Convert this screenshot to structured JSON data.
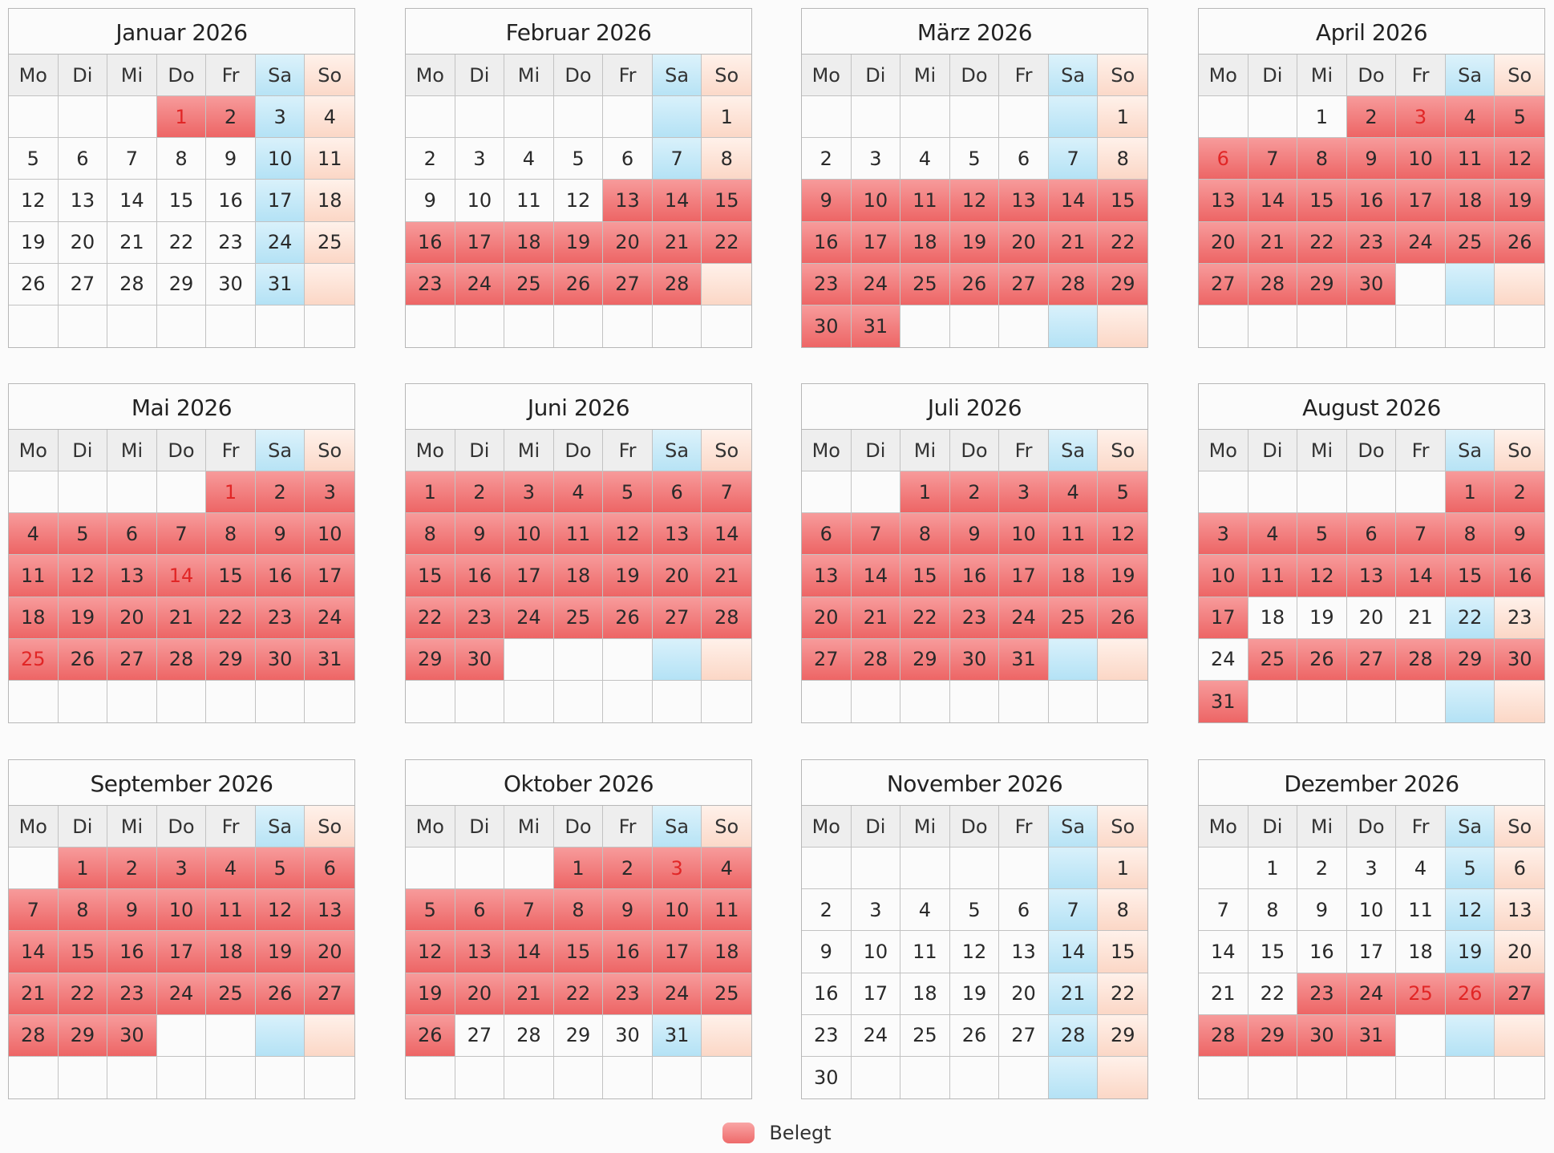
{
  "weekdays": [
    "Mo",
    "Di",
    "Mi",
    "Do",
    "Fr",
    "Sa",
    "So"
  ],
  "legend": {
    "label": "Belegt"
  },
  "months": [
    {
      "title": "Januar 2026",
      "first_weekday": 3,
      "days": 31,
      "booked": [
        1,
        2
      ],
      "holidays": [
        1
      ]
    },
    {
      "title": "Februar 2026",
      "first_weekday": 6,
      "days": 28,
      "booked": [
        13,
        14,
        15,
        16,
        17,
        18,
        19,
        20,
        21,
        22,
        23,
        24,
        25,
        26,
        27,
        28
      ],
      "holidays": []
    },
    {
      "title": "März 2026",
      "first_weekday": 6,
      "days": 31,
      "booked": [
        9,
        10,
        11,
        12,
        13,
        14,
        15,
        16,
        17,
        18,
        19,
        20,
        21,
        22,
        23,
        24,
        25,
        26,
        27,
        28,
        29,
        30,
        31
      ],
      "holidays": []
    },
    {
      "title": "April 2026",
      "first_weekday": 2,
      "days": 30,
      "booked": [
        2,
        3,
        4,
        5,
        6,
        7,
        8,
        9,
        10,
        11,
        12,
        13,
        14,
        15,
        16,
        17,
        18,
        19,
        20,
        21,
        22,
        23,
        24,
        25,
        26,
        27,
        28,
        29,
        30
      ],
      "holidays": [
        3,
        6
      ]
    },
    {
      "title": "Mai 2026",
      "first_weekday": 4,
      "days": 31,
      "booked": [
        1,
        2,
        3,
        4,
        5,
        6,
        7,
        8,
        9,
        10,
        11,
        12,
        13,
        14,
        15,
        16,
        17,
        18,
        19,
        20,
        21,
        22,
        23,
        24,
        25,
        26,
        27,
        28,
        29,
        30,
        31
      ],
      "holidays": [
        1,
        14,
        25
      ]
    },
    {
      "title": "Juni 2026",
      "first_weekday": 0,
      "days": 30,
      "booked": [
        1,
        2,
        3,
        4,
        5,
        6,
        7,
        8,
        9,
        10,
        11,
        12,
        13,
        14,
        15,
        16,
        17,
        18,
        19,
        20,
        21,
        22,
        23,
        24,
        25,
        26,
        27,
        28,
        29,
        30
      ],
      "holidays": []
    },
    {
      "title": "Juli 2026",
      "first_weekday": 2,
      "days": 31,
      "booked": [
        1,
        2,
        3,
        4,
        5,
        6,
        7,
        8,
        9,
        10,
        11,
        12,
        13,
        14,
        15,
        16,
        17,
        18,
        19,
        20,
        21,
        22,
        23,
        24,
        25,
        26,
        27,
        28,
        29,
        30,
        31
      ],
      "holidays": []
    },
    {
      "title": "August 2026",
      "first_weekday": 5,
      "days": 31,
      "booked": [
        1,
        2,
        3,
        4,
        5,
        6,
        7,
        8,
        9,
        10,
        11,
        12,
        13,
        14,
        15,
        16,
        17,
        25,
        26,
        27,
        28,
        29,
        30,
        31
      ],
      "holidays": []
    },
    {
      "title": "September 2026",
      "first_weekday": 1,
      "days": 30,
      "booked": [
        1,
        2,
        3,
        4,
        5,
        6,
        7,
        8,
        9,
        10,
        11,
        12,
        13,
        14,
        15,
        16,
        17,
        18,
        19,
        20,
        21,
        22,
        23,
        24,
        25,
        26,
        27,
        28,
        29,
        30
      ],
      "holidays": []
    },
    {
      "title": "Oktober 2026",
      "first_weekday": 3,
      "days": 31,
      "booked": [
        1,
        2,
        3,
        4,
        5,
        6,
        7,
        8,
        9,
        10,
        11,
        12,
        13,
        14,
        15,
        16,
        17,
        18,
        19,
        20,
        21,
        22,
        23,
        24,
        25,
        26
      ],
      "holidays": [
        3
      ]
    },
    {
      "title": "November 2026",
      "first_weekday": 6,
      "days": 30,
      "booked": [],
      "holidays": []
    },
    {
      "title": "Dezember 2026",
      "first_weekday": 1,
      "days": 31,
      "booked": [
        23,
        24,
        25,
        26,
        27,
        28,
        29,
        30,
        31
      ],
      "holidays": [
        25,
        26
      ]
    }
  ]
}
